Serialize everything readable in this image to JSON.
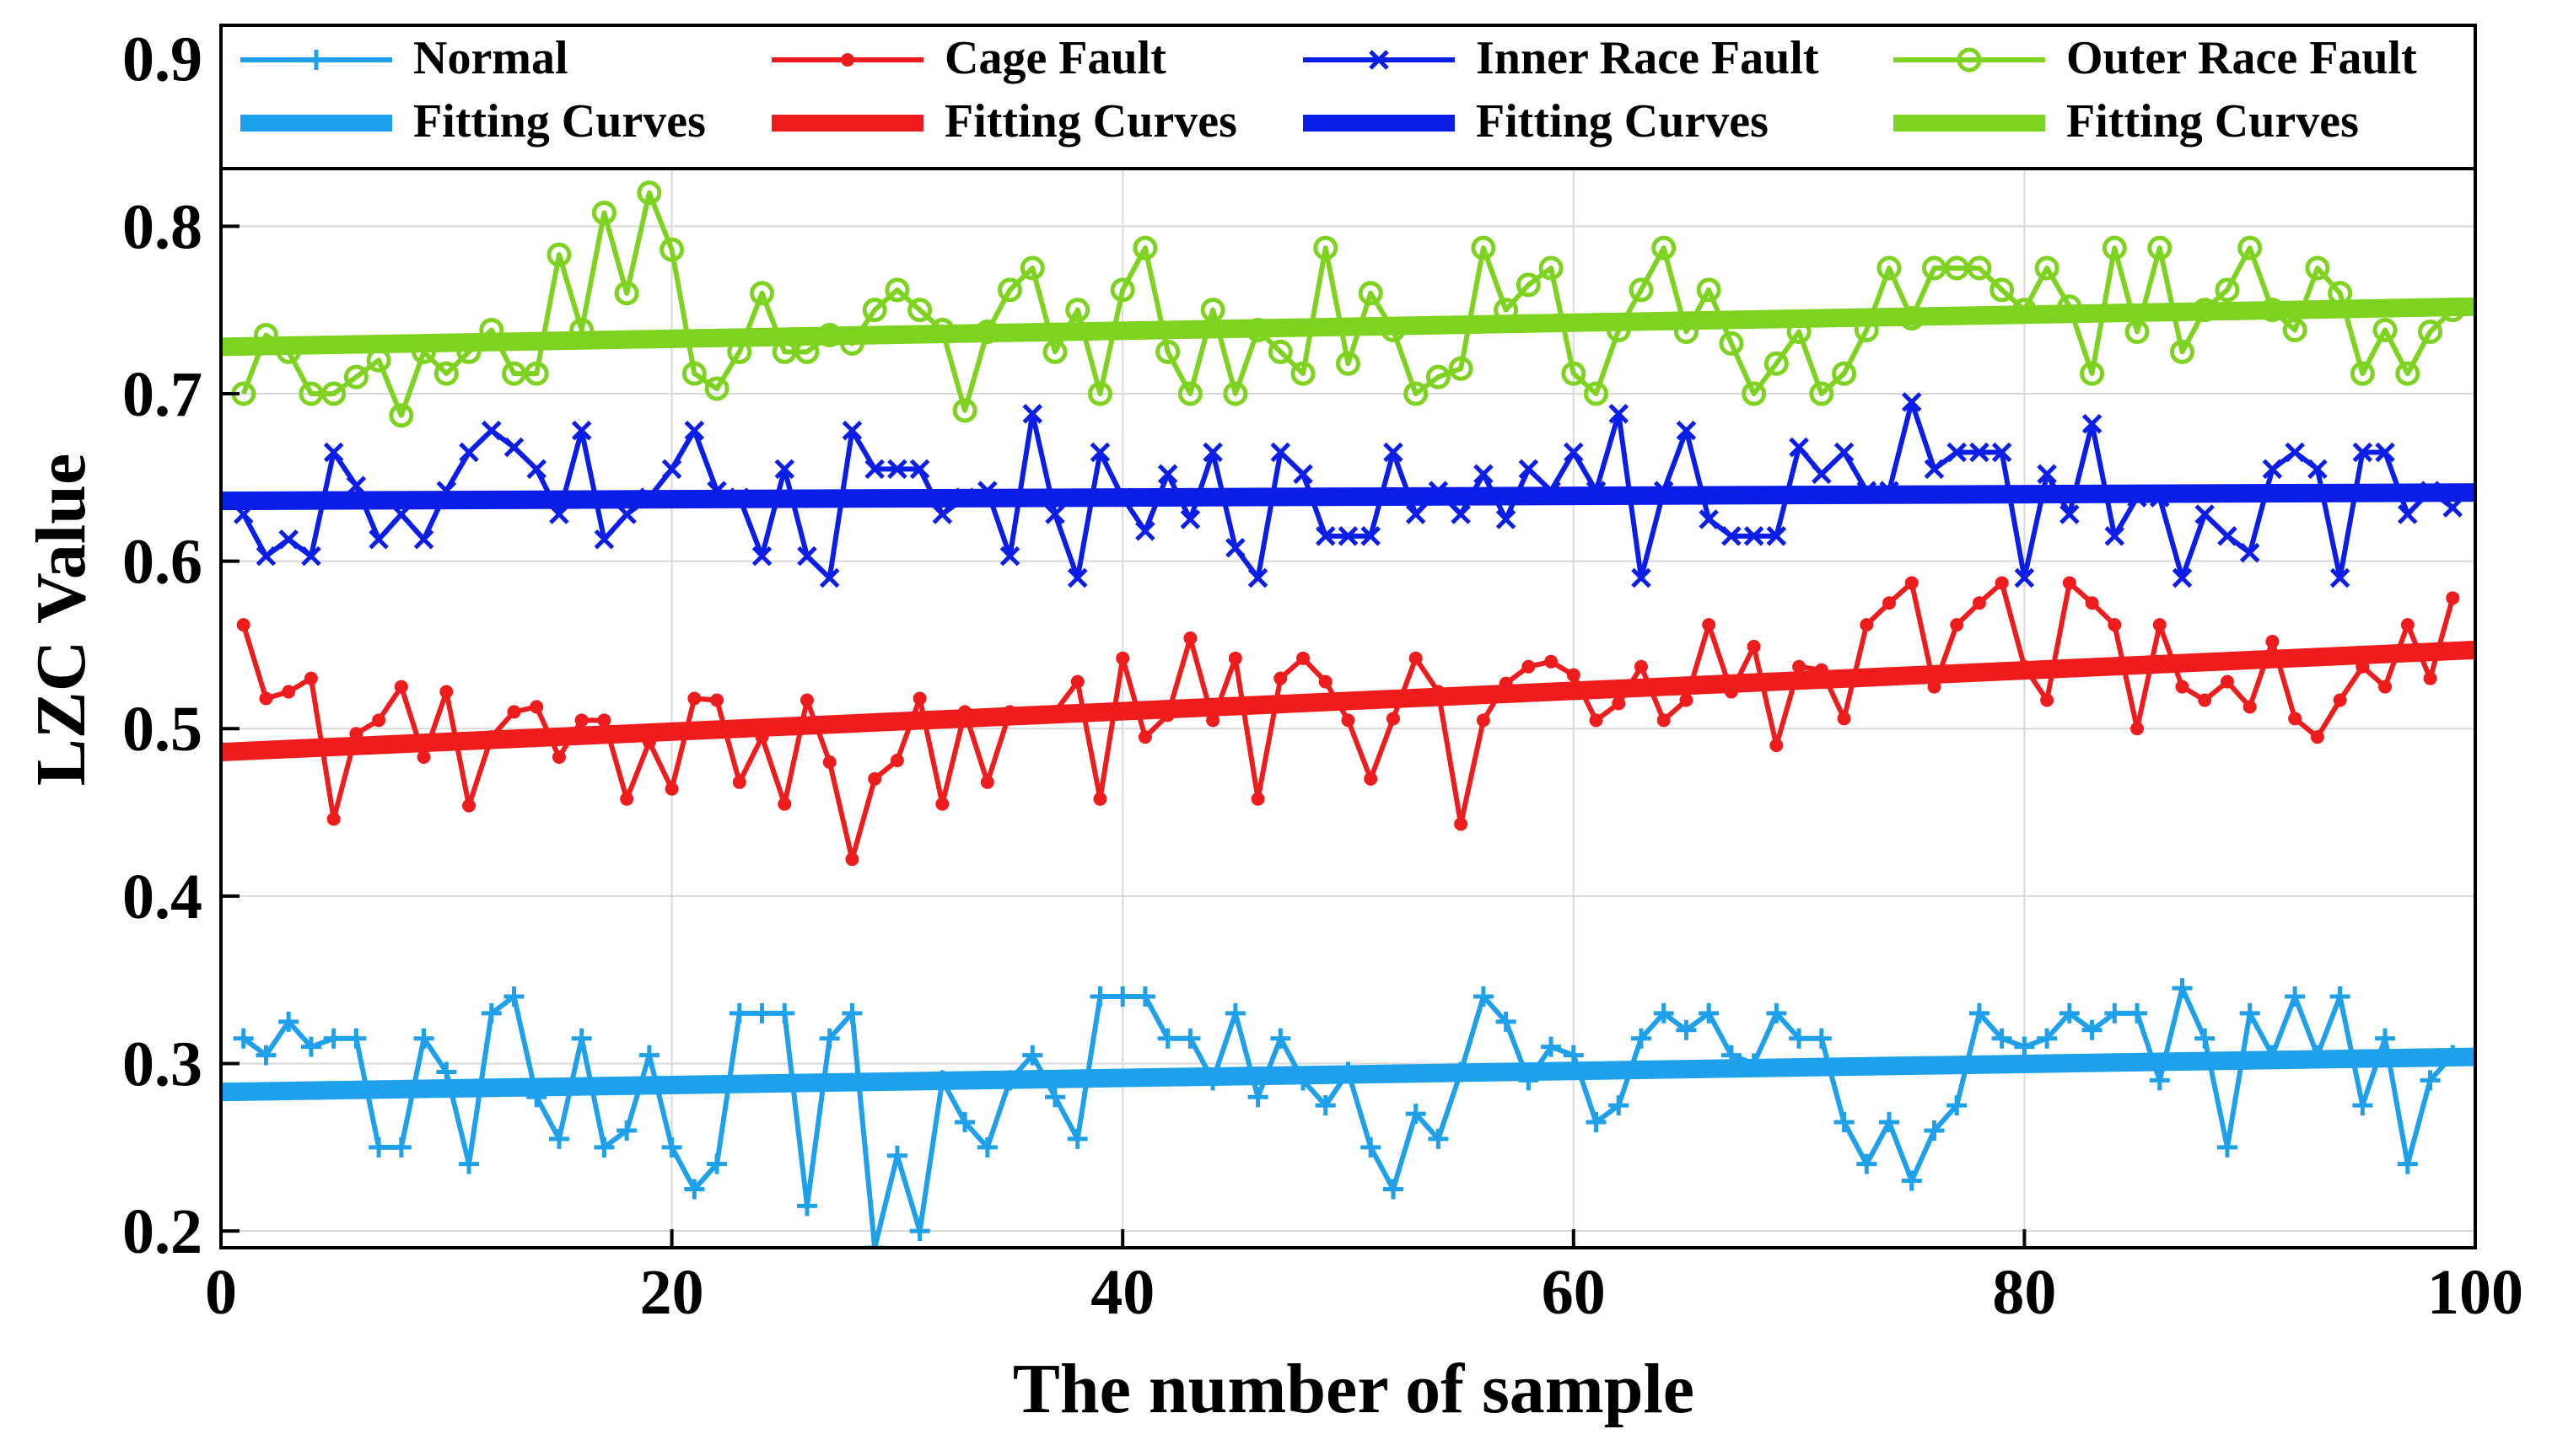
{
  "chart_data": {
    "type": "line",
    "title": "",
    "xlabel": "The number of sample",
    "ylabel": "LZC Value",
    "xlim": [
      0,
      100
    ],
    "ylim": [
      0.19,
      0.92
    ],
    "xticks": [
      0,
      20,
      40,
      60,
      80,
      100
    ],
    "yticks": [
      0.2,
      0.3,
      0.4,
      0.5,
      0.6,
      0.7,
      0.8,
      0.9
    ],
    "xtick_labels": [
      "0",
      "20",
      "40",
      "60",
      "80",
      "100"
    ],
    "ytick_labels": [
      "0.2",
      "0.3",
      "0.4",
      "0.5",
      "0.6",
      "0.7",
      "0.8",
      "0.9"
    ],
    "grid": true,
    "legend_position": "top",
    "series": [
      {
        "name": "Normal",
        "color": "#1fa0ea",
        "marker": "plus",
        "x": [
          1,
          2,
          3,
          4,
          5,
          6,
          7,
          8,
          9,
          10,
          11,
          12,
          13,
          14,
          15,
          16,
          17,
          18,
          19,
          20,
          21,
          22,
          23,
          24,
          25,
          26,
          27,
          28,
          29,
          30,
          31,
          32,
          33,
          34,
          35,
          36,
          37,
          38,
          39,
          40,
          41,
          42,
          43,
          44,
          45,
          46,
          47,
          48,
          49,
          50,
          51,
          52,
          53,
          54,
          55,
          56,
          57,
          58,
          59,
          60,
          61,
          62,
          63,
          64,
          65,
          66,
          67,
          68,
          69,
          70,
          71,
          72,
          73,
          74,
          75,
          76,
          77,
          78,
          79,
          80,
          81,
          82,
          83,
          84,
          85,
          86,
          87,
          88,
          89,
          90,
          91,
          92,
          93,
          94,
          95,
          96,
          97,
          98,
          99
        ],
        "values": [
          0.315,
          0.305,
          0.325,
          0.31,
          0.315,
          0.315,
          0.25,
          0.25,
          0.315,
          0.295,
          0.24,
          0.33,
          0.34,
          0.28,
          0.255,
          0.315,
          0.25,
          0.26,
          0.305,
          0.25,
          0.225,
          0.24,
          0.33,
          0.33,
          0.33,
          0.215,
          0.315,
          0.33,
          0.19,
          0.245,
          0.2,
          0.29,
          0.265,
          0.25,
          0.29,
          0.305,
          0.28,
          0.255,
          0.34,
          0.34,
          0.34,
          0.315,
          0.315,
          0.29,
          0.33,
          0.28,
          0.315,
          0.29,
          0.275,
          0.295,
          0.25,
          0.225,
          0.27,
          0.255,
          0.295,
          0.34,
          0.325,
          0.29,
          0.31,
          0.305,
          0.265,
          0.275,
          0.315,
          0.33,
          0.32,
          0.33,
          0.305,
          0.3,
          0.33,
          0.315,
          0.315,
          0.265,
          0.24,
          0.265,
          0.23,
          0.26,
          0.275,
          0.33,
          0.315,
          0.31,
          0.315,
          0.33,
          0.32,
          0.33,
          0.33,
          0.29,
          0.345,
          0.315,
          0.25,
          0.33,
          0.305,
          0.34,
          0.305,
          0.34,
          0.275,
          0.315,
          0.24,
          0.29,
          0.305
        ]
      },
      {
        "name": "Cage Fault",
        "color": "#ee1c1c",
        "marker": "dot",
        "x": [
          1,
          2,
          3,
          4,
          5,
          6,
          7,
          8,
          9,
          10,
          11,
          12,
          13,
          14,
          15,
          16,
          17,
          18,
          19,
          20,
          21,
          22,
          23,
          24,
          25,
          26,
          27,
          28,
          29,
          30,
          31,
          32,
          33,
          34,
          35,
          36,
          37,
          38,
          39,
          40,
          41,
          42,
          43,
          44,
          45,
          46,
          47,
          48,
          49,
          50,
          51,
          52,
          53,
          54,
          55,
          56,
          57,
          58,
          59,
          60,
          61,
          62,
          63,
          64,
          65,
          66,
          67,
          68,
          69,
          70,
          71,
          72,
          73,
          74,
          75,
          76,
          77,
          78,
          79,
          80,
          81,
          82,
          83,
          84,
          85,
          86,
          87,
          88,
          89,
          90,
          91,
          92,
          93,
          94,
          95,
          96,
          97,
          98,
          99
        ],
        "values": [
          0.562,
          0.518,
          0.522,
          0.53,
          0.446,
          0.497,
          0.505,
          0.525,
          0.483,
          0.522,
          0.454,
          0.495,
          0.51,
          0.513,
          0.483,
          0.505,
          0.505,
          0.458,
          0.492,
          0.464,
          0.518,
          0.517,
          0.468,
          0.495,
          0.455,
          0.517,
          0.48,
          0.422,
          0.47,
          0.481,
          0.518,
          0.455,
          0.51,
          0.468,
          0.51,
          0.508,
          0.51,
          0.528,
          0.458,
          0.542,
          0.495,
          0.508,
          0.554,
          0.505,
          0.542,
          0.458,
          0.53,
          0.542,
          0.528,
          0.505,
          0.47,
          0.506,
          0.542,
          0.522,
          0.443,
          0.505,
          0.527,
          0.537,
          0.54,
          0.532,
          0.505,
          0.515,
          0.537,
          0.505,
          0.517,
          0.562,
          0.522,
          0.549,
          0.49,
          0.537,
          0.535,
          0.506,
          0.562,
          0.575,
          0.587,
          0.525,
          0.562,
          0.575,
          0.587,
          0.537,
          0.517,
          0.587,
          0.575,
          0.562,
          0.5,
          0.562,
          0.525,
          0.517,
          0.528,
          0.513,
          0.552,
          0.506,
          0.495,
          0.517,
          0.537,
          0.525,
          0.562,
          0.53,
          0.578
        ]
      },
      {
        "name": "Inner Race Fault",
        "color": "#0b1ee8",
        "marker": "x",
        "x": [
          1,
          2,
          3,
          4,
          5,
          6,
          7,
          8,
          9,
          10,
          11,
          12,
          13,
          14,
          15,
          16,
          17,
          18,
          19,
          20,
          21,
          22,
          23,
          24,
          25,
          26,
          27,
          28,
          29,
          30,
          31,
          32,
          33,
          34,
          35,
          36,
          37,
          38,
          39,
          40,
          41,
          42,
          43,
          44,
          45,
          46,
          47,
          48,
          49,
          50,
          51,
          52,
          53,
          54,
          55,
          56,
          57,
          58,
          59,
          60,
          61,
          62,
          63,
          64,
          65,
          66,
          67,
          68,
          69,
          70,
          71,
          72,
          73,
          74,
          75,
          76,
          77,
          78,
          79,
          80,
          81,
          82,
          83,
          84,
          85,
          86,
          87,
          88,
          89,
          90,
          91,
          92,
          93,
          94,
          95,
          96,
          97,
          98,
          99
        ],
        "values": [
          0.628,
          0.603,
          0.613,
          0.603,
          0.665,
          0.645,
          0.613,
          0.628,
          0.613,
          0.642,
          0.665,
          0.678,
          0.668,
          0.655,
          0.628,
          0.678,
          0.613,
          0.628,
          0.638,
          0.655,
          0.678,
          0.642,
          0.638,
          0.603,
          0.655,
          0.603,
          0.59,
          0.678,
          0.655,
          0.655,
          0.655,
          0.628,
          0.638,
          0.642,
          0.603,
          0.688,
          0.628,
          0.59,
          0.665,
          0.638,
          0.618,
          0.652,
          0.625,
          0.665,
          0.608,
          0.59,
          0.665,
          0.652,
          0.615,
          0.615,
          0.615,
          0.665,
          0.628,
          0.642,
          0.628,
          0.652,
          0.625,
          0.655,
          0.642,
          0.665,
          0.642,
          0.688,
          0.59,
          0.642,
          0.678,
          0.625,
          0.615,
          0.615,
          0.615,
          0.668,
          0.652,
          0.665,
          0.642,
          0.642,
          0.695,
          0.655,
          0.665,
          0.665,
          0.665,
          0.59,
          0.652,
          0.628,
          0.682,
          0.615,
          0.638,
          0.638,
          0.59,
          0.628,
          0.615,
          0.605,
          0.655,
          0.665,
          0.655,
          0.59,
          0.665,
          0.665,
          0.628,
          0.642,
          0.632
        ]
      },
      {
        "name": "Outer Race Fault",
        "color": "#7ed321",
        "marker": "circle",
        "x": [
          1,
          2,
          3,
          4,
          5,
          6,
          7,
          8,
          9,
          10,
          11,
          12,
          13,
          14,
          15,
          16,
          17,
          18,
          19,
          20,
          21,
          22,
          23,
          24,
          25,
          26,
          27,
          28,
          29,
          30,
          31,
          32,
          33,
          34,
          35,
          36,
          37,
          38,
          39,
          40,
          41,
          42,
          43,
          44,
          45,
          46,
          47,
          48,
          49,
          50,
          51,
          52,
          53,
          54,
          55,
          56,
          57,
          58,
          59,
          60,
          61,
          62,
          63,
          64,
          65,
          66,
          67,
          68,
          69,
          70,
          71,
          72,
          73,
          74,
          75,
          76,
          77,
          78,
          79,
          80,
          81,
          82,
          83,
          84,
          85,
          86,
          87,
          88,
          89,
          90,
          91,
          92,
          93,
          94,
          95,
          96,
          97,
          98,
          99
        ],
        "values": [
          0.7,
          0.735,
          0.725,
          0.7,
          0.7,
          0.71,
          0.72,
          0.687,
          0.725,
          0.712,
          0.725,
          0.738,
          0.712,
          0.712,
          0.783,
          0.738,
          0.808,
          0.76,
          0.82,
          0.786,
          0.712,
          0.703,
          0.725,
          0.76,
          0.725,
          0.725,
          0.735,
          0.73,
          0.75,
          0.762,
          0.75,
          0.738,
          0.69,
          0.737,
          0.762,
          0.775,
          0.725,
          0.75,
          0.7,
          0.762,
          0.787,
          0.725,
          0.7,
          0.75,
          0.7,
          0.738,
          0.725,
          0.712,
          0.787,
          0.718,
          0.76,
          0.738,
          0.7,
          0.71,
          0.715,
          0.787,
          0.75,
          0.765,
          0.775,
          0.712,
          0.7,
          0.738,
          0.762,
          0.787,
          0.737,
          0.762,
          0.73,
          0.7,
          0.718,
          0.737,
          0.7,
          0.712,
          0.738,
          0.775,
          0.745,
          0.775,
          0.775,
          0.775,
          0.762,
          0.75,
          0.775,
          0.752,
          0.712,
          0.787,
          0.737,
          0.787,
          0.725,
          0.75,
          0.762,
          0.787,
          0.75,
          0.738,
          0.775,
          0.76,
          0.712,
          0.738,
          0.712,
          0.737,
          0.75
        ]
      }
    ],
    "fitting_curves": [
      {
        "name": "Fitting Curves",
        "of": "Normal",
        "color": "#1fa0ea",
        "x": [
          0,
          100
        ],
        "values": [
          0.283,
          0.304
        ]
      },
      {
        "name": "Fitting Curves",
        "of": "Cage Fault",
        "color": "#ee1c1c",
        "x": [
          0,
          100
        ],
        "values": [
          0.486,
          0.547
        ]
      },
      {
        "name": "Fitting Curves",
        "of": "Inner Race Fault",
        "color": "#0b1ee8",
        "x": [
          0,
          100
        ],
        "values": [
          0.636,
          0.641
        ]
      },
      {
        "name": "Fitting Curves",
        "of": "Outer Race Fault",
        "color": "#7ed321",
        "x": [
          0,
          100
        ],
        "values": [
          0.728,
          0.752
        ]
      }
    ],
    "legend": [
      "Normal",
      "Cage Fault",
      "Inner Race Fault",
      "Outer Race Fault",
      "Fitting Curves",
      "Fitting Curves",
      "Fitting Curves",
      "Fitting Curves"
    ]
  }
}
